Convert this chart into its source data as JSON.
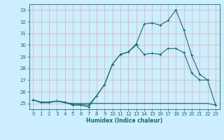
{
  "xlabel": "Humidex (Indice chaleur)",
  "bg_color": "#cceeff",
  "grid_color": "#ddb8b8",
  "line_color": "#1a6b6b",
  "xlim": [
    -0.5,
    23.5
  ],
  "ylim": [
    24.5,
    33.5
  ],
  "yticks": [
    25,
    26,
    27,
    28,
    29,
    30,
    31,
    32,
    33
  ],
  "xticks": [
    0,
    1,
    2,
    3,
    4,
    5,
    6,
    7,
    8,
    9,
    10,
    11,
    12,
    13,
    14,
    15,
    16,
    17,
    18,
    19,
    20,
    21,
    22,
    23
  ],
  "line1_x": [
    0,
    1,
    2,
    3,
    4,
    5,
    6,
    7,
    8,
    9,
    10,
    11,
    12,
    13,
    14,
    15,
    16,
    17,
    18,
    19,
    20,
    21,
    22,
    23
  ],
  "line1_y": [
    25.3,
    25.1,
    25.1,
    25.2,
    25.1,
    24.9,
    24.9,
    24.85,
    25.65,
    26.6,
    28.35,
    29.2,
    29.4,
    30.1,
    31.8,
    31.9,
    31.7,
    32.1,
    33.0,
    31.3,
    29.1,
    27.5,
    27.0,
    24.85
  ],
  "line2_x": [
    0,
    1,
    2,
    3,
    4,
    5,
    6,
    7,
    8,
    9,
    10,
    11,
    12,
    13,
    14,
    15,
    16,
    17,
    18,
    19,
    20,
    21,
    22
  ],
  "line2_y": [
    25.3,
    25.1,
    25.1,
    25.2,
    25.1,
    24.85,
    24.85,
    24.7,
    25.65,
    26.6,
    28.35,
    29.2,
    29.4,
    30.0,
    29.2,
    29.3,
    29.2,
    29.7,
    29.7,
    29.35,
    27.6,
    27.0,
    27.0
  ],
  "line3_x": [
    0,
    1,
    2,
    3,
    4,
    5,
    6,
    7,
    8,
    9,
    10,
    11,
    12,
    13,
    14,
    15,
    16,
    17,
    18,
    19,
    20,
    21,
    22,
    23
  ],
  "line3_y": [
    25.3,
    25.05,
    25.05,
    25.2,
    25.05,
    25.0,
    25.0,
    25.0,
    25.0,
    25.0,
    25.0,
    25.0,
    25.0,
    25.0,
    25.0,
    25.0,
    25.0,
    25.0,
    25.0,
    25.0,
    25.0,
    25.0,
    25.0,
    24.85
  ],
  "xlabel_fontsize": 5.5,
  "tick_fontsize": 5.0,
  "marker_size": 2.2,
  "linewidth": 0.8
}
